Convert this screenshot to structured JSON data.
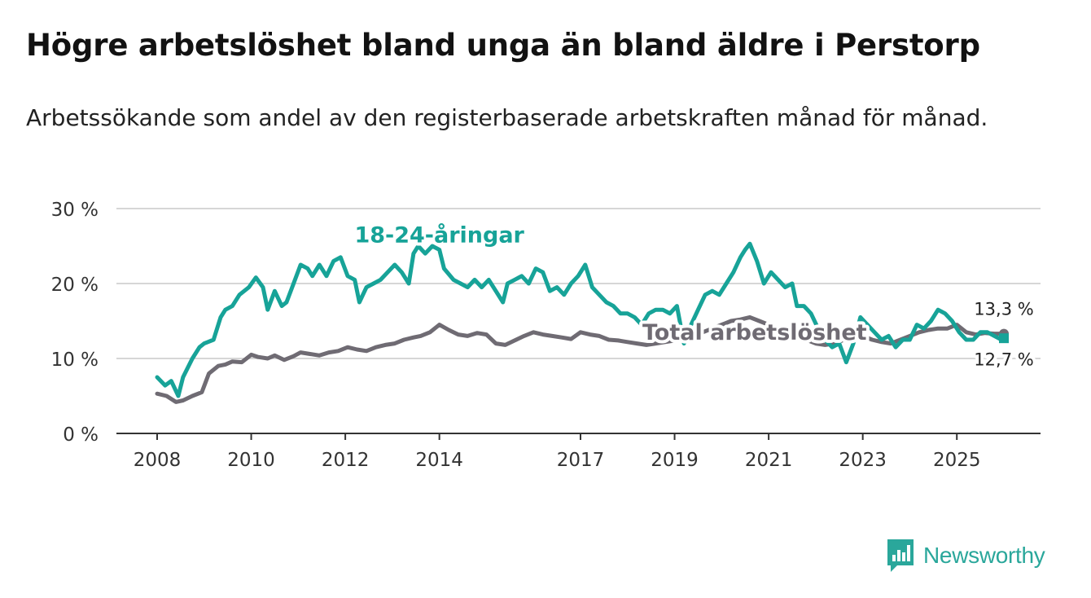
{
  "title": "Högre arbetslöshet bland unga än bland äldre i Perstorp",
  "subtitle": "Arbetssökande som andel av den registerbaserade arbetskraften månad för månad.",
  "brand": "Newsworthy",
  "colors": {
    "youth": "#17a398",
    "total": "#6f6b73",
    "grid": "#d6d6d6",
    "axis": "#333333",
    "brand": "#2aa79b"
  },
  "chart_data": {
    "type": "line",
    "title": "Högre arbetslöshet bland unga än bland äldre i Perstorp",
    "ylabel": "",
    "xlabel": "",
    "xlim": [
      2008.0,
      2026.2
    ],
    "ylim": [
      0,
      30
    ],
    "yticks": [
      0,
      10,
      20,
      30
    ],
    "ytick_labels": [
      "0 %",
      "10 %",
      "20 %",
      "30 %"
    ],
    "xticks": [
      2008,
      2010,
      2012,
      2014,
      2017,
      2019,
      2021,
      2023,
      2025
    ],
    "xtick_labels": [
      "2008",
      "2010",
      "2012",
      "2014",
      "2017",
      "2019",
      "2021",
      "2023",
      "2025"
    ],
    "grid": true,
    "series": [
      {
        "name": "18-24-åringar",
        "label": "18-24-åringar",
        "end_label": "12,7 %",
        "color": "#17a398",
        "x": [
          2008.0,
          2008.17,
          2008.3,
          2008.45,
          2008.55,
          2008.75,
          2008.9,
          2009.0,
          2009.2,
          2009.35,
          2009.45,
          2009.6,
          2009.75,
          2009.95,
          2010.1,
          2010.25,
          2010.35,
          2010.5,
          2010.65,
          2010.75,
          2010.9,
          2011.05,
          2011.2,
          2011.3,
          2011.45,
          2011.6,
          2011.75,
          2011.9,
          2012.05,
          2012.2,
          2012.3,
          2012.45,
          2012.6,
          2012.75,
          2012.9,
          2013.05,
          2013.2,
          2013.35,
          2013.45,
          2013.55,
          2013.7,
          2013.85,
          2014.0,
          2014.1,
          2014.3,
          2014.45,
          2014.6,
          2014.75,
          2014.9,
          2015.05,
          2015.2,
          2015.35,
          2015.45,
          2015.6,
          2015.75,
          2015.9,
          2016.05,
          2016.2,
          2016.35,
          2016.5,
          2016.65,
          2016.8,
          2016.95,
          2017.1,
          2017.25,
          2017.4,
          2017.55,
          2017.7,
          2017.85,
          2018.0,
          2018.15,
          2018.3,
          2018.45,
          2018.6,
          2018.75,
          2018.9,
          2019.05,
          2019.2,
          2019.35,
          2019.5,
          2019.65,
          2019.8,
          2019.95,
          2020.1,
          2020.25,
          2020.4,
          2020.5,
          2020.6,
          2020.75,
          2020.9,
          2021.05,
          2021.2,
          2021.35,
          2021.5,
          2021.6,
          2021.75,
          2021.9,
          2022.05,
          2022.2,
          2022.35,
          2022.5,
          2022.65,
          2022.8,
          2022.95,
          2023.1,
          2023.25,
          2023.4,
          2023.55,
          2023.7,
          2023.85,
          2024.0,
          2024.15,
          2024.3,
          2024.45,
          2024.6,
          2024.75,
          2024.9,
          2025.05,
          2025.2,
          2025.35,
          2025.5,
          2025.65,
          2025.8,
          2025.95,
          2026.0
        ],
        "values": [
          7.5,
          6.4,
          7.0,
          5.0,
          7.5,
          10.0,
          11.5,
          12.0,
          12.5,
          15.5,
          16.5,
          17.0,
          18.5,
          19.5,
          20.8,
          19.5,
          16.5,
          19.0,
          17.0,
          17.5,
          20.0,
          22.5,
          22.0,
          21.0,
          22.5,
          21.0,
          23.0,
          23.5,
          21.0,
          20.5,
          17.5,
          19.5,
          20.0,
          20.5,
          21.5,
          22.5,
          21.5,
          20.0,
          24.0,
          25.0,
          24.0,
          25.0,
          24.5,
          22.0,
          20.5,
          20.0,
          19.5,
          20.5,
          19.5,
          20.5,
          19.0,
          17.5,
          20.0,
          20.5,
          21.0,
          20.0,
          22.0,
          21.5,
          19.0,
          19.5,
          18.5,
          20.0,
          21.0,
          22.5,
          19.5,
          18.5,
          17.5,
          17.0,
          16.0,
          16.0,
          15.5,
          14.5,
          16.0,
          16.5,
          16.5,
          16.0,
          17.0,
          12.0,
          14.5,
          16.5,
          18.5,
          19.0,
          18.5,
          20.0,
          21.5,
          23.5,
          24.5,
          25.3,
          23.0,
          20.0,
          21.5,
          20.5,
          19.5,
          20.0,
          17.0,
          17.0,
          16.0,
          14.0,
          12.5,
          11.5,
          12.0,
          9.5,
          12.0,
          15.5,
          14.5,
          13.5,
          12.5,
          13.0,
          11.5,
          12.5,
          12.5,
          14.5,
          14.0,
          15.0,
          16.5,
          16.0,
          15.0,
          13.5,
          12.5,
          12.5,
          13.5,
          13.5,
          13.0,
          12.5,
          12.7
        ]
      },
      {
        "name": "Total arbetslöshet",
        "label": "Total arbetslöshet",
        "end_label": "13,3 %",
        "color": "#6f6b73",
        "x": [
          2008.0,
          2008.2,
          2008.4,
          2008.55,
          2008.75,
          2008.95,
          2009.1,
          2009.3,
          2009.45,
          2009.6,
          2009.8,
          2010.0,
          2010.15,
          2010.35,
          2010.5,
          2010.7,
          2010.9,
          2011.05,
          2011.25,
          2011.45,
          2011.65,
          2011.85,
          2012.05,
          2012.25,
          2012.45,
          2012.65,
          2012.85,
          2013.05,
          2013.25,
          2013.45,
          2013.6,
          2013.8,
          2014.0,
          2014.2,
          2014.4,
          2014.6,
          2014.8,
          2015.0,
          2015.2,
          2015.4,
          2015.6,
          2015.8,
          2016.0,
          2016.2,
          2016.4,
          2016.6,
          2016.8,
          2017.0,
          2017.2,
          2017.4,
          2017.6,
          2017.8,
          2018.0,
          2018.2,
          2018.4,
          2018.6,
          2018.8,
          2019.0,
          2019.2,
          2019.4,
          2019.6,
          2019.8,
          2020.0,
          2020.2,
          2020.4,
          2020.6,
          2020.8,
          2021.0,
          2021.2,
          2021.4,
          2021.6,
          2021.8,
          2022.0,
          2022.2,
          2022.4,
          2022.6,
          2022.8,
          2023.0,
          2023.2,
          2023.4,
          2023.6,
          2023.8,
          2024.0,
          2024.2,
          2024.4,
          2024.6,
          2024.8,
          2025.0,
          2025.2,
          2025.4,
          2025.6,
          2025.8,
          2026.0
        ],
        "values": [
          5.3,
          5.0,
          4.2,
          4.4,
          5.0,
          5.5,
          8.0,
          9.0,
          9.2,
          9.6,
          9.5,
          10.5,
          10.2,
          10.0,
          10.4,
          9.8,
          10.3,
          10.8,
          10.6,
          10.4,
          10.8,
          11.0,
          11.5,
          11.2,
          11.0,
          11.5,
          11.8,
          12.0,
          12.5,
          12.8,
          13.0,
          13.5,
          14.5,
          13.8,
          13.2,
          13.0,
          13.4,
          13.2,
          12.0,
          11.8,
          12.4,
          13.0,
          13.5,
          13.2,
          13.0,
          12.8,
          12.6,
          13.5,
          13.2,
          13.0,
          12.5,
          12.4,
          12.2,
          12.0,
          11.8,
          12.0,
          12.2,
          12.4,
          12.6,
          13.0,
          13.5,
          14.0,
          14.5,
          15.0,
          15.2,
          15.5,
          15.0,
          14.5,
          14.0,
          13.5,
          13.0,
          12.5,
          12.0,
          11.8,
          12.0,
          12.5,
          12.8,
          13.0,
          12.5,
          12.2,
          12.0,
          12.5,
          13.0,
          13.5,
          13.8,
          14.0,
          14.0,
          14.5,
          13.5,
          13.2,
          13.4,
          13.3,
          13.3
        ]
      }
    ]
  }
}
